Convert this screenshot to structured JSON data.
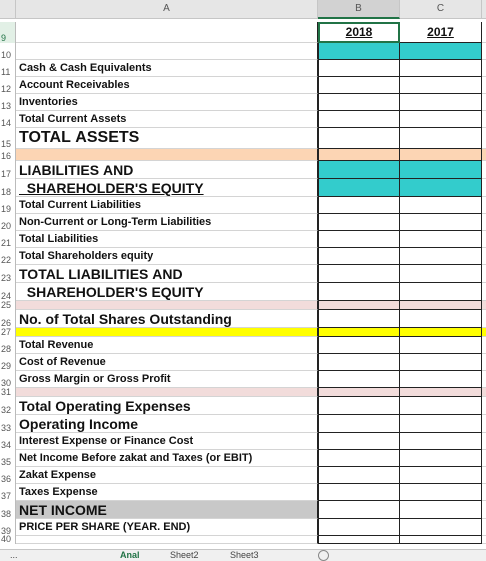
{
  "columns": {
    "a": "A",
    "b": "B",
    "c": "C"
  },
  "rows": [
    {
      "num": "9",
      "label": "",
      "style": "s1",
      "fill": "",
      "b": "2018",
      "c": "2017",
      "selected": true
    },
    {
      "num": "10",
      "label": "",
      "style": "s1",
      "fill": "",
      "b_fill": "#33cccc",
      "c_fill": "#33cccc"
    },
    {
      "num": "11",
      "label": "Cash & Cash Equivalents",
      "style": "s1"
    },
    {
      "num": "12",
      "label": "Account Receivables",
      "style": "s1"
    },
    {
      "num": "13",
      "label": "Inventories",
      "style": "s1"
    },
    {
      "num": "14",
      "label": "Total Current Assets",
      "style": "s1"
    },
    {
      "num": "15",
      "label": "TOTAL ASSETS",
      "style": "s3"
    },
    {
      "num": "16",
      "label": "",
      "style": "s1",
      "fill": "#fcd5b4"
    },
    {
      "num": "17",
      "label": "LIABILITIES AND",
      "style": "s2",
      "b_fill": "#33cccc",
      "c_fill": "#33cccc"
    },
    {
      "num": "18",
      "label": "  SHAREHOLDER'S EQUITY",
      "style": "s2",
      "underline": true,
      "b_fill": "#33cccc",
      "c_fill": "#33cccc"
    },
    {
      "num": "19",
      "label": "Total Current Liabilities",
      "style": "s1"
    },
    {
      "num": "20",
      "label": "Non-Current or Long-Term Liabilities",
      "style": "s1"
    },
    {
      "num": "21",
      "label": "Total Liabilities",
      "style": "s1"
    },
    {
      "num": "22",
      "label": "Total Shareholders equity",
      "style": "s1"
    },
    {
      "num": "23",
      "label": "TOTAL LIABILITIES AND",
      "style": "s2"
    },
    {
      "num": "24",
      "label": "  SHAREHOLDER'S EQUITY",
      "style": "s2"
    },
    {
      "num": "25",
      "label": "",
      "style": "s1",
      "fill": "#f2dcdb"
    },
    {
      "num": "26",
      "label": "No. of Total Shares Outstanding",
      "style": "s2"
    },
    {
      "num": "27",
      "label": "",
      "style": "s1",
      "fill": "#ffff00"
    },
    {
      "num": "28",
      "label": "Total Revenue",
      "style": "s1"
    },
    {
      "num": "29",
      "label": "Cost of Revenue",
      "style": "s1"
    },
    {
      "num": "30",
      "label": "Gross Margin or Gross Profit",
      "style": "s1"
    },
    {
      "num": "31",
      "label": "",
      "style": "s1",
      "fill": "#f2dcdb"
    },
    {
      "num": "32",
      "label": "Total Operating Expenses",
      "style": "s2"
    },
    {
      "num": "33",
      "label": "Operating Income",
      "style": "s2"
    },
    {
      "num": "34",
      "label": "Interest Expense or Finance Cost",
      "style": "s1"
    },
    {
      "num": "35",
      "label": "Net Income Before zakat and Taxes (or EBIT)",
      "style": "s1"
    },
    {
      "num": "36",
      "label": "Zakat Expense",
      "style": "s1"
    },
    {
      "num": "37",
      "label": "Taxes Expense",
      "style": "s1"
    },
    {
      "num": "38",
      "label": "NET INCOME",
      "style": "s2",
      "a_fill": "#c8c8c8"
    },
    {
      "num": "39",
      "label": "PRICE PER SHARE (YEAR. END)",
      "style": "s1"
    },
    {
      "num": "40",
      "label": "",
      "style": "s1"
    }
  ],
  "sheet_tabs": [
    {
      "label": "...",
      "active": false
    },
    {
      "label": "Anal",
      "active": true
    },
    {
      "label": "Sheet2",
      "active": false
    },
    {
      "label": "Sheet3",
      "active": false
    }
  ],
  "add_sheet_icon": "plus-circle-icon"
}
